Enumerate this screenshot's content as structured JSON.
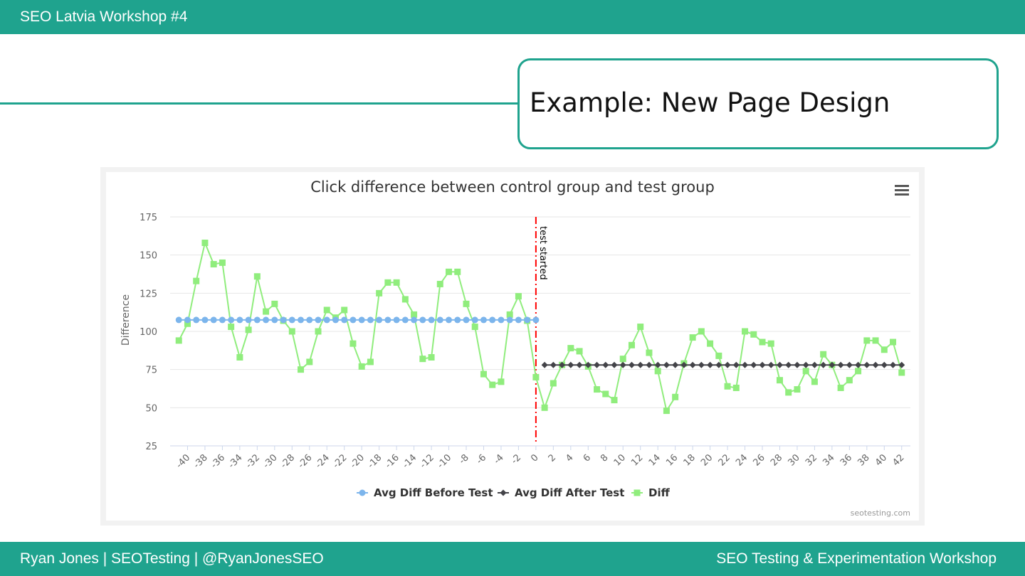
{
  "header": {
    "title": "SEO Latvia Workshop #4"
  },
  "slide": {
    "title": "Example: New Page Design"
  },
  "footer": {
    "left": "Ryan Jones | SEOTesting | @RyanJonesSEO",
    "right": "SEO Testing & Experimentation Workshop"
  },
  "colors": {
    "brand": "#1fa38e",
    "before": "#7cb5ec",
    "after": "#434348",
    "diff": "#90ed7d",
    "marker_line": "#ff0000"
  },
  "chart_data": {
    "type": "line",
    "title": "Click difference between control group and test group",
    "ylabel": "Difference",
    "xlabel": "",
    "ylim": [
      25,
      175
    ],
    "yticks": [
      25,
      50,
      75,
      100,
      125,
      150,
      175
    ],
    "xlim": [
      -42,
      43
    ],
    "xticks": [
      -40,
      -38,
      -36,
      -34,
      -32,
      -30,
      -28,
      -26,
      -24,
      -22,
      -20,
      -18,
      -16,
      -14,
      -12,
      -10,
      -8,
      -6,
      -4,
      -2,
      0,
      2,
      4,
      6,
      8,
      10,
      12,
      14,
      16,
      18,
      20,
      22,
      24,
      26,
      28,
      30,
      32,
      34,
      36,
      38,
      40,
      42
    ],
    "grid": true,
    "legend_position": "bottom-center",
    "plot_line": {
      "x": 0,
      "label": "test started"
    },
    "menu_icon": "hamburger-menu-icon",
    "credits": "seotesting.com",
    "series": [
      {
        "name": "Avg Diff Before Test",
        "marker": "circle",
        "x": [
          -41,
          -40,
          -39,
          -38,
          -37,
          -36,
          -35,
          -34,
          -33,
          -32,
          -31,
          -30,
          -29,
          -28,
          -27,
          -26,
          -25,
          -24,
          -23,
          -22,
          -21,
          -20,
          -19,
          -18,
          -17,
          -16,
          -15,
          -14,
          -13,
          -12,
          -11,
          -10,
          -9,
          -8,
          -7,
          -6,
          -5,
          -4,
          -3,
          -2,
          -1,
          0
        ],
        "y": [
          107.5,
          107.5,
          107.5,
          107.5,
          107.5,
          107.5,
          107.5,
          107.5,
          107.5,
          107.5,
          107.5,
          107.5,
          107.5,
          107.5,
          107.5,
          107.5,
          107.5,
          107.5,
          107.5,
          107.5,
          107.5,
          107.5,
          107.5,
          107.5,
          107.5,
          107.5,
          107.5,
          107.5,
          107.5,
          107.5,
          107.5,
          107.5,
          107.5,
          107.5,
          107.5,
          107.5,
          107.5,
          107.5,
          107.5,
          107.5,
          107.5,
          107.5
        ]
      },
      {
        "name": "Avg Diff After Test",
        "marker": "diamond",
        "x": [
          1,
          2,
          3,
          4,
          5,
          6,
          7,
          8,
          9,
          10,
          11,
          12,
          13,
          14,
          15,
          16,
          17,
          18,
          19,
          20,
          21,
          22,
          23,
          24,
          25,
          26,
          27,
          28,
          29,
          30,
          31,
          32,
          33,
          34,
          35,
          36,
          37,
          38,
          39,
          40,
          41,
          42
        ],
        "y": [
          78,
          78,
          78,
          78,
          78,
          78,
          78,
          78,
          78,
          78,
          78,
          78,
          78,
          78,
          78,
          78,
          78,
          78,
          78,
          78,
          78,
          78,
          78,
          78,
          78,
          78,
          78,
          78,
          78,
          78,
          78,
          78,
          78,
          78,
          78,
          78,
          78,
          78,
          78,
          78,
          78,
          78
        ]
      },
      {
        "name": "Diff",
        "marker": "square",
        "x": [
          -41,
          -40,
          -39,
          -38,
          -37,
          -36,
          -35,
          -34,
          -33,
          -32,
          -31,
          -30,
          -29,
          -28,
          -27,
          -26,
          -25,
          -24,
          -23,
          -22,
          -21,
          -20,
          -19,
          -18,
          -17,
          -16,
          -15,
          -14,
          -13,
          -12,
          -11,
          -10,
          -9,
          -8,
          -7,
          -6,
          -5,
          -4,
          -3,
          -2,
          -1,
          0,
          1,
          2,
          3,
          4,
          5,
          6,
          7,
          8,
          9,
          10,
          11,
          12,
          13,
          14,
          15,
          16,
          17,
          18,
          19,
          20,
          21,
          22,
          23,
          24,
          25,
          26,
          27,
          28,
          29,
          30,
          31,
          32,
          33,
          34,
          35,
          36,
          37,
          38,
          39,
          40,
          41,
          42
        ],
        "y": [
          94,
          105,
          133,
          158,
          144,
          145,
          103,
          83,
          101,
          136,
          113,
          118,
          107,
          100,
          75,
          80,
          100,
          114,
          109,
          114,
          92,
          77,
          80,
          125,
          132,
          132,
          121,
          111,
          82,
          83,
          131,
          139,
          139,
          118,
          103,
          72,
          65,
          67,
          111,
          123,
          107,
          70,
          50,
          66,
          78,
          89,
          87,
          77,
          62,
          59,
          55,
          82,
          91,
          103,
          86,
          74,
          48,
          57,
          79,
          96,
          100,
          92,
          84,
          64,
          63,
          100,
          98,
          93,
          92,
          68,
          60,
          62,
          74,
          67,
          85,
          78,
          63,
          68,
          74,
          94,
          94,
          88,
          93,
          73
        ]
      }
    ]
  }
}
